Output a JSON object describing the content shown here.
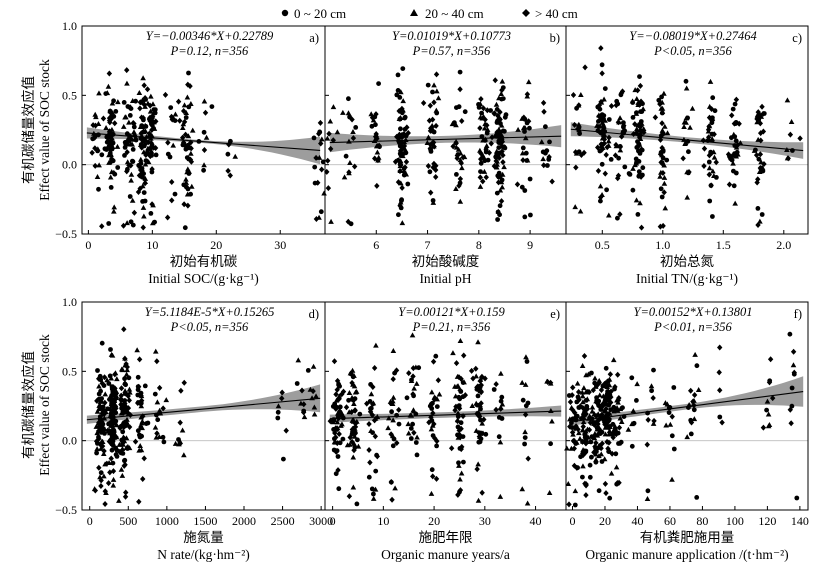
{
  "legend": [
    {
      "label": "0 ~ 20 cm",
      "marker": "circle"
    },
    {
      "label": "20 ~ 40 cm",
      "marker": "triangle"
    },
    {
      "label": "> 40 cm",
      "marker": "diamond"
    }
  ],
  "ylabel_cn": "有机碳储量效应值",
  "ylabel_en": "Effect value of SOC stock",
  "colors": {
    "band": "#8c8c8c",
    "points": "#000000",
    "zero_line": "#bdbdbd"
  },
  "chart_data": [
    {
      "type": "scatter",
      "panel": "a)",
      "equation": "Y=−0.00346*X+0.22789",
      "stats": "P=0.12, n=356",
      "slope": -0.00346,
      "intercept": 0.22789,
      "xlabel_cn": "初始有机碳",
      "xlabel_en": "Initial SOC/(g·kg⁻¹)",
      "xlim": [
        -1,
        37
      ],
      "ylim": [
        -0.5,
        1.0
      ],
      "xticks": [
        0,
        10,
        20,
        30
      ],
      "xticklabels": [
        "0",
        "10",
        "20",
        "30"
      ],
      "yticks": [
        -0.5,
        0.0,
        0.5,
        1.0
      ],
      "yticklabels": [
        "−0.5",
        "0.0",
        "0.5",
        "1.0"
      ],
      "band_halfwidth": [
        0.04,
        0.01,
        0.1
      ],
      "x_clusters": [
        [
          1.5,
          0.06
        ],
        [
          3.5,
          0.22
        ],
        [
          6.5,
          0.24
        ],
        [
          8.5,
          0.24
        ],
        [
          10,
          0.2
        ],
        [
          13,
          0.06
        ],
        [
          15.5,
          0.2
        ],
        [
          18,
          0.04
        ],
        [
          22,
          0.02
        ],
        [
          36,
          0.04
        ]
      ],
      "n": 356
    },
    {
      "type": "scatter",
      "panel": "b)",
      "equation": "Y=0.01019*X+0.10773",
      "stats": "P=0.57, n=356",
      "slope": 0.01019,
      "intercept": 0.10773,
      "xlabel_cn": "初始酸碱度",
      "xlabel_en": "Initial pH",
      "xlim": [
        5.0,
        9.7
      ],
      "ylim": [
        -0.5,
        1.0
      ],
      "xticks": [
        6,
        7,
        8,
        9
      ],
      "xticklabels": [
        "6",
        "7",
        "8",
        "9"
      ],
      "yticks": [
        -0.5,
        0.0,
        0.5,
        1.0
      ],
      "yticklabels": [
        "",
        "",
        "",
        ""
      ],
      "band_halfwidth": [
        0.07,
        0.025,
        0.08
      ],
      "x_clusters": [
        [
          5.1,
          0.05
        ],
        [
          5.5,
          0.06
        ],
        [
          6.0,
          0.12
        ],
        [
          6.5,
          0.32
        ],
        [
          7.1,
          0.16
        ],
        [
          7.6,
          0.1
        ],
        [
          8.1,
          0.12
        ],
        [
          8.4,
          0.26
        ],
        [
          8.9,
          0.08
        ],
        [
          9.3,
          0.05
        ]
      ],
      "n": 356
    },
    {
      "type": "scatter",
      "panel": "c)",
      "equation": "Y=−0.08019*X+0.27464",
      "stats": "P<0.05, n=356",
      "slope": -0.08019,
      "intercept": 0.27464,
      "xlabel_cn": "初始总氮",
      "xlabel_en": "Initial TN/(g·kg⁻¹)",
      "xlim": [
        0.2,
        2.2
      ],
      "ylim": [
        -0.5,
        1.0
      ],
      "xticks": [
        0.5,
        1.0,
        1.5,
        2.0
      ],
      "xticklabels": [
        "0.5",
        "1.0",
        "1.5",
        "2.0"
      ],
      "yticks": [
        -0.5,
        0.0,
        0.5,
        1.0
      ],
      "yticklabels": [
        "",
        "",
        "",
        ""
      ],
      "band_halfwidth": [
        0.05,
        0.02,
        0.06
      ],
      "x_clusters": [
        [
          0.3,
          0.05
        ],
        [
          0.5,
          0.18
        ],
        [
          0.65,
          0.08
        ],
        [
          0.8,
          0.2
        ],
        [
          1.0,
          0.12
        ],
        [
          1.2,
          0.08
        ],
        [
          1.4,
          0.12
        ],
        [
          1.6,
          0.06
        ],
        [
          1.8,
          0.09
        ],
        [
          2.05,
          0.03
        ]
      ],
      "n": 356
    },
    {
      "type": "scatter",
      "panel": "d)",
      "equation": "Y=5.1184E-5*X+0.15265",
      "stats": "P<0.05, n=356",
      "slope": 5.1184e-05,
      "intercept": 0.15265,
      "xlabel_cn": "施氮量",
      "xlabel_en": "N rate/(kg·hm⁻²)",
      "xlim": [
        -100,
        3050
      ],
      "ylim": [
        -0.5,
        1.0
      ],
      "xticks": [
        0,
        500,
        1000,
        1500,
        2000,
        2500,
        3000
      ],
      "xticklabels": [
        "0",
        "500",
        "1000",
        "1500",
        "2000",
        "2500",
        "3000"
      ],
      "yticks": [
        -0.5,
        0.0,
        0.5,
        1.0
      ],
      "yticklabels": [
        "−0.5",
        "0.0",
        "0.5",
        "1.0"
      ],
      "band_halfwidth": [
        0.03,
        0.02,
        0.1
      ],
      "x_clusters": [
        [
          150,
          0.22
        ],
        [
          300,
          0.3
        ],
        [
          450,
          0.22
        ],
        [
          650,
          0.1
        ],
        [
          900,
          0.04
        ],
        [
          1150,
          0.02
        ],
        [
          2450,
          0.02
        ],
        [
          2750,
          0.03
        ],
        [
          2900,
          0.02
        ]
      ],
      "n": 356
    },
    {
      "type": "scatter",
      "panel": "e)",
      "equation": "Y=0.00121*X+0.159",
      "stats": "P=0.21, n=356",
      "slope": 0.00121,
      "intercept": 0.159,
      "xlabel_cn": "施肥年限",
      "xlabel_en": "Organic manure years/a",
      "xlim": [
        -1.5,
        46
      ],
      "ylim": [
        -0.5,
        1.0
      ],
      "xticks": [
        0,
        10,
        20,
        30,
        40
      ],
      "xticklabels": [
        "0",
        "10",
        "20",
        "30",
        "40"
      ],
      "yticks": [
        -0.5,
        0.0,
        0.5,
        1.0
      ],
      "yticklabels": [
        "",
        "",
        "",
        ""
      ],
      "band_halfwidth": [
        0.03,
        0.02,
        0.04
      ],
      "x_clusters": [
        [
          1,
          0.16
        ],
        [
          4,
          0.14
        ],
        [
          8,
          0.08
        ],
        [
          12,
          0.08
        ],
        [
          16,
          0.08
        ],
        [
          20,
          0.1
        ],
        [
          25,
          0.16
        ],
        [
          29,
          0.14
        ],
        [
          33,
          0.06
        ],
        [
          38,
          0.04
        ],
        [
          43,
          0.02
        ]
      ],
      "n": 356
    },
    {
      "type": "scatter",
      "panel": "f)",
      "equation": "Y=0.00152*X+0.13801",
      "stats": "P<0.01, n=356",
      "slope": 0.00152,
      "intercept": 0.13801,
      "xlabel_cn": "有机粪肥施用量",
      "xlabel_en": "Organic manure application /(t·hm⁻²)",
      "xlim": [
        -4,
        145
      ],
      "ylim": [
        -0.5,
        1.0
      ],
      "xticks": [
        0,
        20,
        40,
        60,
        80,
        100,
        120,
        140
      ],
      "xticklabels": [
        "0",
        "20",
        "40",
        "60",
        "80",
        "100",
        "120",
        "140"
      ],
      "yticks": [
        -0.5,
        0.0,
        0.5,
        1.0
      ],
      "yticklabels": [
        "",
        "",
        "",
        ""
      ],
      "band_halfwidth": [
        0.03,
        0.02,
        0.11
      ],
      "x_clusters": [
        [
          2,
          0.16
        ],
        [
          8,
          0.22
        ],
        [
          15,
          0.24
        ],
        [
          22,
          0.22
        ],
        [
          28,
          0.14
        ],
        [
          38,
          0.04
        ],
        [
          48,
          0.04
        ],
        [
          60,
          0.04
        ],
        [
          75,
          0.05
        ],
        [
          92,
          0.02
        ],
        [
          121,
          0.04
        ],
        [
          136,
          0.02
        ]
      ],
      "n": 356
    }
  ]
}
